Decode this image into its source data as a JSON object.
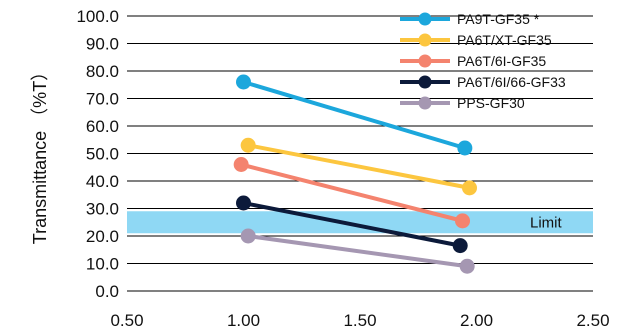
{
  "chart_data": {
    "type": "line",
    "title": "",
    "xlabel": "",
    "ylabel": "Transmittance （%T）",
    "xlim": [
      0.5,
      2.5
    ],
    "ylim": [
      0,
      100
    ],
    "x_ticks": [
      "0.50",
      "1.00",
      "1.50",
      "2.00",
      "2.50"
    ],
    "y_ticks": [
      "0.0",
      "10.0",
      "20.0",
      "30.0",
      "40.0",
      "50.0",
      "60.0",
      "70.0",
      "80.0",
      "90.0",
      "100.0"
    ],
    "grid": "horizontal",
    "legend_position": "top-right",
    "series": [
      {
        "name": "PA9T-GF35 *",
        "color": "#1ca7dc",
        "x": [
          1.0,
          1.95
        ],
        "y": [
          76,
          52
        ]
      },
      {
        "name": "PA6T/XT-GF35",
        "color": "#fcc63f",
        "x": [
          1.02,
          1.97
        ],
        "y": [
          53,
          37.5
        ]
      },
      {
        "name": "PA6T/6I-GF35",
        "color": "#f4836e",
        "x": [
          0.99,
          1.94
        ],
        "y": [
          46,
          25.5
        ]
      },
      {
        "name": "PA6T/6I/66-GF33",
        "color": "#0c1a3a",
        "x": [
          1.0,
          1.93
        ],
        "y": [
          32,
          16.5
        ]
      },
      {
        "name": "PPS-GF30",
        "color": "#a597b2",
        "x": [
          1.02,
          1.96
        ],
        "y": [
          20,
          9
        ]
      }
    ],
    "limit_band": {
      "label": "Limit",
      "y_range": [
        21,
        29
      ],
      "color": "#8fd8f4"
    }
  }
}
